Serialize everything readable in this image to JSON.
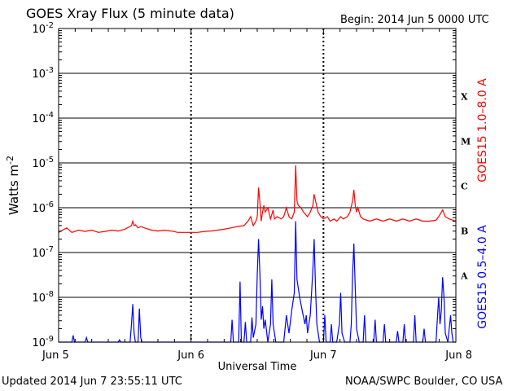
{
  "header": {
    "title": "GOES Xray Flux (5 minute data)",
    "begin": "Begin:  2014 Jun 5 0000 UTC"
  },
  "footer": {
    "updated": "Updated 2014 Jun  7 23:55:11 UTC",
    "credit": "NOAA/SWPC Boulder, CO USA"
  },
  "colors": {
    "long_channel": "#ff0000",
    "short_channel": "#0000ff",
    "axis": "#000000"
  },
  "chart_data": {
    "type": "line",
    "title": "GOES Xray Flux (5 minute data)",
    "xlabel": "Universal Time",
    "ylabel": "Watts m",
    "ylabel_sup": "-2",
    "scale": "log",
    "ylim": [
      1e-09,
      0.01
    ],
    "grid": true,
    "xlim_days": [
      0,
      3
    ],
    "x_ticks": [
      {
        "day": 0,
        "label": "Jun 5"
      },
      {
        "day": 1,
        "label": "Jun 6"
      },
      {
        "day": 2,
        "label": "Jun 7"
      },
      {
        "day": 3,
        "label": "Jun 8"
      }
    ],
    "y_ticks": [
      {
        "exp": -9,
        "label": "10",
        "sup": "-9"
      },
      {
        "exp": -8,
        "label": "10",
        "sup": "-8"
      },
      {
        "exp": -7,
        "label": "10",
        "sup": "-7"
      },
      {
        "exp": -6,
        "label": "10",
        "sup": "-6"
      },
      {
        "exp": -5,
        "label": "10",
        "sup": "-5"
      },
      {
        "exp": -4,
        "label": "10",
        "sup": "-4"
      },
      {
        "exp": -3,
        "label": "10",
        "sup": "-3"
      },
      {
        "exp": -2,
        "label": "10",
        "sup": "-2"
      }
    ],
    "flare_classes": [
      {
        "label": "A",
        "exp": -8
      },
      {
        "label": "B",
        "exp": -7
      },
      {
        "label": "C",
        "exp": -6
      },
      {
        "label": "M",
        "exp": -5
      },
      {
        "label": "X",
        "exp": -4
      }
    ],
    "series": [
      {
        "name": "GOES15 1.0–8.0 A",
        "color": "#ff0000",
        "points": [
          [
            0.0,
            -6.55
          ],
          [
            0.03,
            -6.5
          ],
          [
            0.06,
            -6.45
          ],
          [
            0.1,
            -6.55
          ],
          [
            0.15,
            -6.5
          ],
          [
            0.2,
            -6.53
          ],
          [
            0.25,
            -6.5
          ],
          [
            0.3,
            -6.55
          ],
          [
            0.35,
            -6.53
          ],
          [
            0.4,
            -6.5
          ],
          [
            0.45,
            -6.52
          ],
          [
            0.5,
            -6.48
          ],
          [
            0.55,
            -6.4
          ],
          [
            0.56,
            -6.3
          ],
          [
            0.57,
            -6.4
          ],
          [
            0.58,
            -6.38
          ],
          [
            0.6,
            -6.45
          ],
          [
            0.62,
            -6.42
          ],
          [
            0.65,
            -6.45
          ],
          [
            0.7,
            -6.5
          ],
          [
            0.75,
            -6.52
          ],
          [
            0.8,
            -6.5
          ],
          [
            0.85,
            -6.52
          ],
          [
            0.9,
            -6.55
          ],
          [
            0.95,
            -6.55
          ],
          [
            1.0,
            -6.55
          ],
          [
            1.05,
            -6.55
          ],
          [
            1.1,
            -6.53
          ],
          [
            1.15,
            -6.52
          ],
          [
            1.2,
            -6.5
          ],
          [
            1.25,
            -6.48
          ],
          [
            1.3,
            -6.45
          ],
          [
            1.35,
            -6.42
          ],
          [
            1.4,
            -6.4
          ],
          [
            1.43,
            -6.3
          ],
          [
            1.45,
            -6.2
          ],
          [
            1.47,
            -6.4
          ],
          [
            1.49,
            -6.3
          ],
          [
            1.5,
            -6.2
          ],
          [
            1.51,
            -5.55
          ],
          [
            1.52,
            -5.9
          ],
          [
            1.53,
            -6.3
          ],
          [
            1.54,
            -6.1
          ],
          [
            1.55,
            -5.95
          ],
          [
            1.56,
            -6.1
          ],
          [
            1.58,
            -6.0
          ],
          [
            1.6,
            -6.25
          ],
          [
            1.62,
            -6.05
          ],
          [
            1.63,
            -6.25
          ],
          [
            1.65,
            -6.2
          ],
          [
            1.68,
            -6.25
          ],
          [
            1.7,
            -6.2
          ],
          [
            1.72,
            -6.0
          ],
          [
            1.74,
            -6.2
          ],
          [
            1.76,
            -6.25
          ],
          [
            1.78,
            -6.1
          ],
          [
            1.79,
            -5.05
          ],
          [
            1.8,
            -5.85
          ],
          [
            1.81,
            -5.95
          ],
          [
            1.83,
            -6.0
          ],
          [
            1.85,
            -6.1
          ],
          [
            1.88,
            -6.2
          ],
          [
            1.9,
            -6.1
          ],
          [
            1.92,
            -5.95
          ],
          [
            1.93,
            -5.7
          ],
          [
            1.94,
            -5.85
          ],
          [
            1.96,
            -6.1
          ],
          [
            1.98,
            -6.2
          ],
          [
            2.0,
            -6.25
          ],
          [
            2.03,
            -6.2
          ],
          [
            2.05,
            -6.3
          ],
          [
            2.08,
            -6.25
          ],
          [
            2.1,
            -6.3
          ],
          [
            2.13,
            -6.2
          ],
          [
            2.15,
            -6.25
          ],
          [
            2.18,
            -6.2
          ],
          [
            2.2,
            -6.1
          ],
          [
            2.22,
            -5.85
          ],
          [
            2.23,
            -5.6
          ],
          [
            2.24,
            -5.95
          ],
          [
            2.25,
            -6.1
          ],
          [
            2.26,
            -6.0
          ],
          [
            2.28,
            -6.2
          ],
          [
            2.3,
            -6.25
          ],
          [
            2.35,
            -6.3
          ],
          [
            2.4,
            -6.25
          ],
          [
            2.45,
            -6.3
          ],
          [
            2.5,
            -6.25
          ],
          [
            2.55,
            -6.3
          ],
          [
            2.6,
            -6.25
          ],
          [
            2.65,
            -6.3
          ],
          [
            2.7,
            -6.25
          ],
          [
            2.75,
            -6.3
          ],
          [
            2.8,
            -6.3
          ],
          [
            2.85,
            -6.28
          ],
          [
            2.88,
            -6.15
          ],
          [
            2.9,
            -6.05
          ],
          [
            2.92,
            -6.2
          ],
          [
            2.95,
            -6.25
          ],
          [
            2.98,
            -6.28
          ],
          [
            3.0,
            -6.3
          ]
        ]
      },
      {
        "name": "GOES15 0.5–4.0 A",
        "color": "#0000ff",
        "points": [
          [
            0.0,
            -9.0
          ],
          [
            0.1,
            -9.0
          ],
          [
            0.11,
            -8.85
          ],
          [
            0.12,
            -9.0
          ],
          [
            0.2,
            -9.0
          ],
          [
            0.21,
            -8.9
          ],
          [
            0.22,
            -9.0
          ],
          [
            0.45,
            -9.0
          ],
          [
            0.46,
            -8.95
          ],
          [
            0.47,
            -9.0
          ],
          [
            0.54,
            -9.0
          ],
          [
            0.55,
            -8.6
          ],
          [
            0.56,
            -8.15
          ],
          [
            0.57,
            -8.8
          ],
          [
            0.58,
            -9.0
          ],
          [
            0.6,
            -9.0
          ],
          [
            0.61,
            -8.25
          ],
          [
            0.62,
            -8.9
          ],
          [
            0.63,
            -9.0
          ],
          [
            1.3,
            -9.0
          ],
          [
            1.31,
            -8.5
          ],
          [
            1.32,
            -9.0
          ],
          [
            1.36,
            -9.0
          ],
          [
            1.37,
            -7.65
          ],
          [
            1.38,
            -9.0
          ],
          [
            1.4,
            -9.0
          ],
          [
            1.41,
            -8.55
          ],
          [
            1.42,
            -9.0
          ],
          [
            1.45,
            -9.0
          ],
          [
            1.46,
            -8.45
          ],
          [
            1.47,
            -8.9
          ],
          [
            1.49,
            -8.6
          ],
          [
            1.5,
            -7.5
          ],
          [
            1.51,
            -6.7
          ],
          [
            1.52,
            -7.5
          ],
          [
            1.53,
            -8.5
          ],
          [
            1.54,
            -8.2
          ],
          [
            1.55,
            -8.7
          ],
          [
            1.56,
            -8.5
          ],
          [
            1.58,
            -9.0
          ],
          [
            1.6,
            -8.6
          ],
          [
            1.61,
            -7.6
          ],
          [
            1.62,
            -8.6
          ],
          [
            1.64,
            -9.0
          ],
          [
            1.7,
            -9.0
          ],
          [
            1.72,
            -8.4
          ],
          [
            1.74,
            -8.8
          ],
          [
            1.76,
            -8.3
          ],
          [
            1.78,
            -7.9
          ],
          [
            1.79,
            -6.3
          ],
          [
            1.8,
            -7.6
          ],
          [
            1.82,
            -8.0
          ],
          [
            1.84,
            -8.3
          ],
          [
            1.86,
            -8.6
          ],
          [
            1.87,
            -8.4
          ],
          [
            1.88,
            -8.8
          ],
          [
            1.9,
            -8.4
          ],
          [
            1.92,
            -7.4
          ],
          [
            1.93,
            -6.7
          ],
          [
            1.94,
            -7.8
          ],
          [
            1.95,
            -8.6
          ],
          [
            1.97,
            -9.0
          ],
          [
            2.0,
            -9.0
          ],
          [
            2.01,
            -8.4
          ],
          [
            2.02,
            -9.0
          ],
          [
            2.05,
            -9.0
          ],
          [
            2.06,
            -8.6
          ],
          [
            2.07,
            -9.0
          ],
          [
            2.1,
            -9.0
          ],
          [
            2.12,
            -8.6
          ],
          [
            2.13,
            -7.9
          ],
          [
            2.14,
            -8.8
          ],
          [
            2.16,
            -9.0
          ],
          [
            2.2,
            -9.0
          ],
          [
            2.21,
            -8.6
          ],
          [
            2.22,
            -7.5
          ],
          [
            2.23,
            -6.8
          ],
          [
            2.24,
            -7.8
          ],
          [
            2.25,
            -8.7
          ],
          [
            2.27,
            -9.0
          ],
          [
            2.3,
            -9.0
          ],
          [
            2.31,
            -8.4
          ],
          [
            2.32,
            -9.0
          ],
          [
            2.38,
            -9.0
          ],
          [
            2.39,
            -8.5
          ],
          [
            2.4,
            -9.0
          ],
          [
            2.45,
            -9.0
          ],
          [
            2.46,
            -8.6
          ],
          [
            2.47,
            -9.0
          ],
          [
            2.55,
            -9.0
          ],
          [
            2.56,
            -8.75
          ],
          [
            2.57,
            -9.0
          ],
          [
            2.6,
            -9.0
          ],
          [
            2.61,
            -8.6
          ],
          [
            2.62,
            -9.0
          ],
          [
            2.68,
            -9.0
          ],
          [
            2.69,
            -8.4
          ],
          [
            2.7,
            -9.0
          ],
          [
            2.75,
            -9.0
          ],
          [
            2.76,
            -8.7
          ],
          [
            2.77,
            -9.0
          ],
          [
            2.85,
            -9.0
          ],
          [
            2.86,
            -8.5
          ],
          [
            2.87,
            -8.0
          ],
          [
            2.88,
            -8.6
          ],
          [
            2.89,
            -8.3
          ],
          [
            2.9,
            -7.55
          ],
          [
            2.91,
            -8.0
          ],
          [
            2.92,
            -8.8
          ],
          [
            2.94,
            -9.0
          ],
          [
            2.96,
            -8.4
          ],
          [
            2.97,
            -8.8
          ],
          [
            2.98,
            -9.0
          ],
          [
            3.0,
            -9.0
          ]
        ]
      }
    ]
  }
}
